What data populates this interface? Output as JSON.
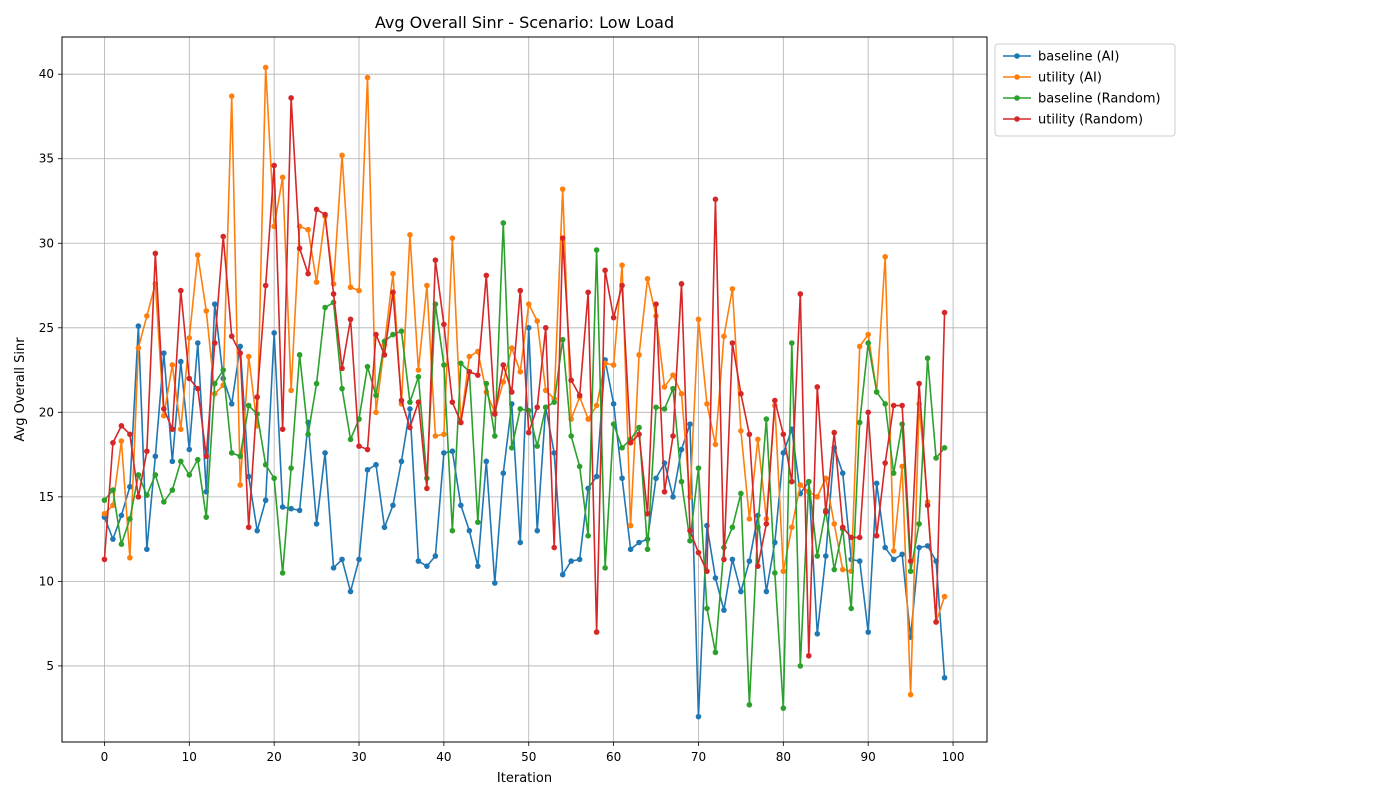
{
  "chart_data": {
    "type": "line",
    "title": "Avg Overall Sinr - Scenario: Low Load",
    "xlabel": "Iteration",
    "ylabel": "Avg Overall Sinr",
    "xlim": [
      -5,
      104
    ],
    "ylim": [
      0.5,
      42.2
    ],
    "xticks": [
      0,
      10,
      20,
      30,
      40,
      50,
      60,
      70,
      80,
      90,
      100
    ],
    "yticks": [
      5,
      10,
      15,
      20,
      25,
      30,
      35,
      40
    ],
    "grid": true,
    "legend_position": "outside-top-right",
    "x": [
      0,
      1,
      2,
      3,
      4,
      5,
      6,
      7,
      8,
      9,
      10,
      11,
      12,
      13,
      14,
      15,
      16,
      17,
      18,
      19,
      20,
      21,
      22,
      23,
      24,
      25,
      26,
      27,
      28,
      29,
      30,
      31,
      32,
      33,
      34,
      35,
      36,
      37,
      38,
      39,
      40,
      41,
      42,
      43,
      44,
      45,
      46,
      47,
      48,
      49,
      50,
      51,
      52,
      53,
      54,
      55,
      56,
      57,
      58,
      59,
      60,
      61,
      62,
      63,
      64,
      65,
      66,
      67,
      68,
      69,
      70,
      71,
      72,
      73,
      74,
      75,
      76,
      77,
      78,
      79,
      80,
      81,
      82,
      83,
      84,
      85,
      86,
      87,
      88,
      89,
      90,
      91,
      92,
      93,
      94,
      95,
      96,
      97,
      98,
      99
    ],
    "series": [
      {
        "name": "baseline (AI)",
        "color": "#1f77b4",
        "values": [
          13.8,
          12.5,
          13.9,
          15.6,
          25.1,
          11.9,
          17.4,
          23.5,
          17.1,
          23.0,
          17.8,
          24.1,
          15.3,
          26.4,
          22.0,
          20.5,
          23.9,
          16.2,
          13.0,
          14.8,
          24.7,
          14.4,
          14.3,
          14.2,
          19.4,
          13.4,
          17.6,
          10.8,
          11.3,
          9.4,
          11.3,
          16.6,
          16.9,
          13.2,
          14.5,
          17.1,
          20.2,
          11.2,
          10.9,
          11.5,
          17.6,
          17.7,
          14.5,
          13.0,
          10.9,
          17.1,
          9.9,
          16.4,
          20.5,
          12.3,
          25.0,
          13.0,
          20.3,
          17.6,
          10.4,
          11.2,
          11.3,
          15.5,
          16.2,
          23.1,
          20.5,
          16.1,
          11.9,
          12.3,
          12.5,
          16.1,
          17.0,
          15.0,
          17.8,
          19.3,
          2.0,
          13.3,
          10.2,
          8.3,
          11.3,
          9.4,
          11.2,
          13.9,
          9.4,
          12.3,
          17.6,
          19.0,
          15.2,
          15.9,
          6.9,
          11.5,
          17.9,
          16.4,
          11.3,
          11.2,
          7.0,
          15.8,
          12.0,
          11.3,
          11.6,
          6.7,
          12.0,
          12.1,
          11.2,
          4.3
        ]
      },
      {
        "name": "utility (AI)",
        "color": "#ff7f0e",
        "values": [
          14.0,
          14.5,
          18.3,
          11.4,
          23.8,
          25.7,
          27.6,
          19.8,
          22.8,
          19.0,
          24.4,
          29.3,
          26.0,
          21.1,
          21.6,
          38.7,
          15.7,
          23.3,
          19.2,
          40.4,
          31.0,
          33.9,
          21.3,
          31.0,
          30.8,
          27.7,
          31.6,
          27.6,
          35.2,
          27.4,
          27.2,
          39.8,
          20.0,
          24.0,
          28.2,
          20.5,
          30.5,
          22.5,
          27.5,
          18.6,
          18.7,
          30.3,
          19.4,
          23.3,
          23.6,
          21.2,
          20.0,
          21.8,
          23.8,
          22.4,
          26.4,
          25.4,
          21.3,
          20.8,
          33.2,
          19.6,
          20.9,
          19.6,
          20.4,
          22.9,
          22.8,
          28.7,
          13.3,
          23.4,
          27.9,
          25.7,
          21.5,
          22.2,
          21.1,
          15.0,
          25.5,
          20.5,
          18.1,
          24.5,
          27.3,
          18.9,
          13.7,
          18.4,
          13.7,
          20.4,
          10.6,
          13.2,
          15.7,
          15.3,
          15.0,
          16.1,
          13.4,
          10.7,
          10.6,
          23.9,
          24.6,
          21.2,
          29.2,
          11.8,
          16.8,
          3.3,
          20.5,
          14.7,
          7.6,
          9.1
        ]
      },
      {
        "name": "baseline (Random)",
        "color": "#2ca02c",
        "values": [
          14.8,
          15.4,
          12.2,
          13.7,
          16.3,
          15.1,
          16.3,
          14.7,
          15.4,
          17.1,
          16.3,
          17.2,
          13.8,
          21.7,
          22.5,
          17.6,
          17.4,
          20.4,
          19.9,
          16.9,
          16.1,
          10.5,
          16.7,
          23.4,
          18.7,
          21.7,
          26.2,
          26.5,
          21.4,
          18.4,
          19.6,
          22.7,
          21.0,
          24.2,
          24.6,
          24.8,
          20.6,
          22.1,
          16.1,
          26.4,
          22.8,
          13.0,
          22.9,
          22.4,
          13.5,
          21.7,
          18.6,
          31.2,
          17.9,
          20.2,
          20.1,
          18.0,
          20.3,
          20.6,
          24.3,
          18.6,
          16.8,
          12.7,
          29.6,
          10.8,
          19.3,
          17.9,
          18.4,
          19.1,
          11.9,
          20.3,
          20.2,
          21.4,
          15.9,
          12.4,
          16.7,
          8.4,
          5.8,
          12.0,
          13.2,
          15.2,
          2.7,
          13.2,
          19.6,
          10.5,
          2.5,
          24.1,
          5.0,
          15.9,
          11.5,
          14.2,
          10.7,
          13.1,
          8.4,
          19.4,
          24.1,
          21.2,
          20.5,
          16.4,
          19.3,
          10.6,
          13.4,
          23.2,
          17.3,
          17.9
        ]
      },
      {
        "name": "utility (Random)",
        "color": "#d62728",
        "values": [
          11.3,
          18.2,
          19.2,
          18.7,
          15.0,
          17.7,
          29.4,
          20.2,
          19.0,
          27.2,
          22.0,
          21.4,
          17.4,
          24.1,
          30.4,
          24.5,
          23.5,
          13.2,
          20.9,
          27.5,
          34.6,
          19.0,
          38.6,
          29.7,
          28.2,
          32.0,
          31.7,
          27.0,
          22.6,
          25.5,
          18.0,
          17.8,
          24.6,
          23.4,
          27.1,
          20.7,
          19.1,
          20.6,
          15.5,
          29.0,
          25.2,
          20.6,
          19.4,
          22.4,
          22.2,
          28.1,
          19.9,
          22.8,
          21.2,
          27.2,
          18.8,
          20.3,
          25.0,
          12.0,
          30.3,
          21.9,
          21.0,
          27.1,
          7.0,
          28.4,
          25.6,
          27.5,
          18.2,
          18.7,
          14.0,
          26.4,
          15.3,
          18.6,
          27.6,
          13.0,
          11.7,
          10.6,
          32.6,
          11.3,
          24.1,
          21.1,
          18.7,
          10.9,
          13.4,
          20.7,
          18.7,
          15.9,
          27.0,
          5.6,
          21.5,
          14.1,
          18.8,
          13.2,
          12.6,
          12.6,
          20.0,
          12.7,
          17.0,
          20.4,
          20.4,
          11.2,
          21.7,
          14.5,
          7.6,
          25.9
        ]
      }
    ]
  }
}
